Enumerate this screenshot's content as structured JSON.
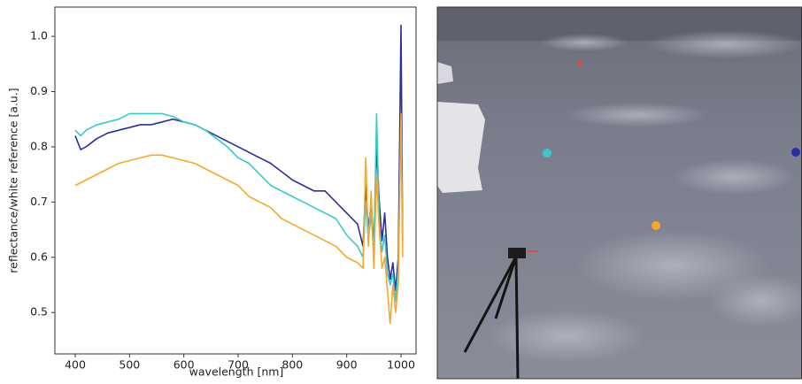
{
  "chart_data": {
    "type": "line",
    "x_label": "wavelength [nm]",
    "y_label": "reflectance/white reference [a.u.]",
    "x": [
      400,
      410,
      420,
      440,
      460,
      480,
      500,
      520,
      540,
      560,
      580,
      600,
      620,
      640,
      660,
      680,
      700,
      720,
      740,
      760,
      780,
      800,
      820,
      840,
      860,
      880,
      900,
      920,
      930,
      935,
      940,
      945,
      950,
      955,
      960,
      965,
      970,
      975,
      980,
      985,
      990,
      995,
      1000,
      1003
    ],
    "series": [
      {
        "color": "#2b2f9e",
        "values": [
          0.82,
          0.795,
          0.8,
          0.815,
          0.825,
          0.83,
          0.835,
          0.84,
          0.84,
          0.845,
          0.85,
          0.845,
          0.84,
          0.83,
          0.82,
          0.81,
          0.8,
          0.79,
          0.78,
          0.77,
          0.755,
          0.74,
          0.73,
          0.72,
          0.72,
          0.7,
          0.68,
          0.66,
          0.62,
          0.73,
          0.65,
          0.7,
          0.62,
          0.8,
          0.7,
          0.63,
          0.68,
          0.6,
          0.56,
          0.59,
          0.54,
          0.6,
          1.02,
          0.63
        ]
      },
      {
        "color": "#3cc8c8",
        "values": [
          0.83,
          0.82,
          0.83,
          0.84,
          0.845,
          0.85,
          0.86,
          0.86,
          0.86,
          0.86,
          0.855,
          0.845,
          0.84,
          0.83,
          0.815,
          0.8,
          0.78,
          0.77,
          0.75,
          0.73,
          0.72,
          0.71,
          0.7,
          0.69,
          0.68,
          0.67,
          0.64,
          0.62,
          0.6,
          0.7,
          0.63,
          0.68,
          0.6,
          0.86,
          0.66,
          0.61,
          0.64,
          0.57,
          0.55,
          0.57,
          0.52,
          0.58,
          0.85,
          0.62
        ]
      },
      {
        "color": "#f5a830",
        "values": [
          0.73,
          0.735,
          0.74,
          0.75,
          0.76,
          0.77,
          0.775,
          0.78,
          0.785,
          0.785,
          0.78,
          0.775,
          0.77,
          0.76,
          0.75,
          0.74,
          0.73,
          0.71,
          0.7,
          0.69,
          0.67,
          0.66,
          0.65,
          0.64,
          0.63,
          0.62,
          0.6,
          0.59,
          0.58,
          0.78,
          0.62,
          0.72,
          0.58,
          0.75,
          0.65,
          0.58,
          0.6,
          0.54,
          0.48,
          0.55,
          0.5,
          0.55,
          0.86,
          0.6
        ]
      }
    ],
    "xlim": [
      362.5,
      1027.7
    ],
    "ylim": [
      0.425,
      1.053
    ],
    "xticks": [
      400,
      500,
      600,
      700,
      800,
      900,
      1000
    ],
    "yticks": [
      0.5,
      0.6,
      0.7,
      0.8,
      0.9,
      {
        "value": 1,
        "label": "1.0"
      }
    ],
    "grid": false
  }
}
